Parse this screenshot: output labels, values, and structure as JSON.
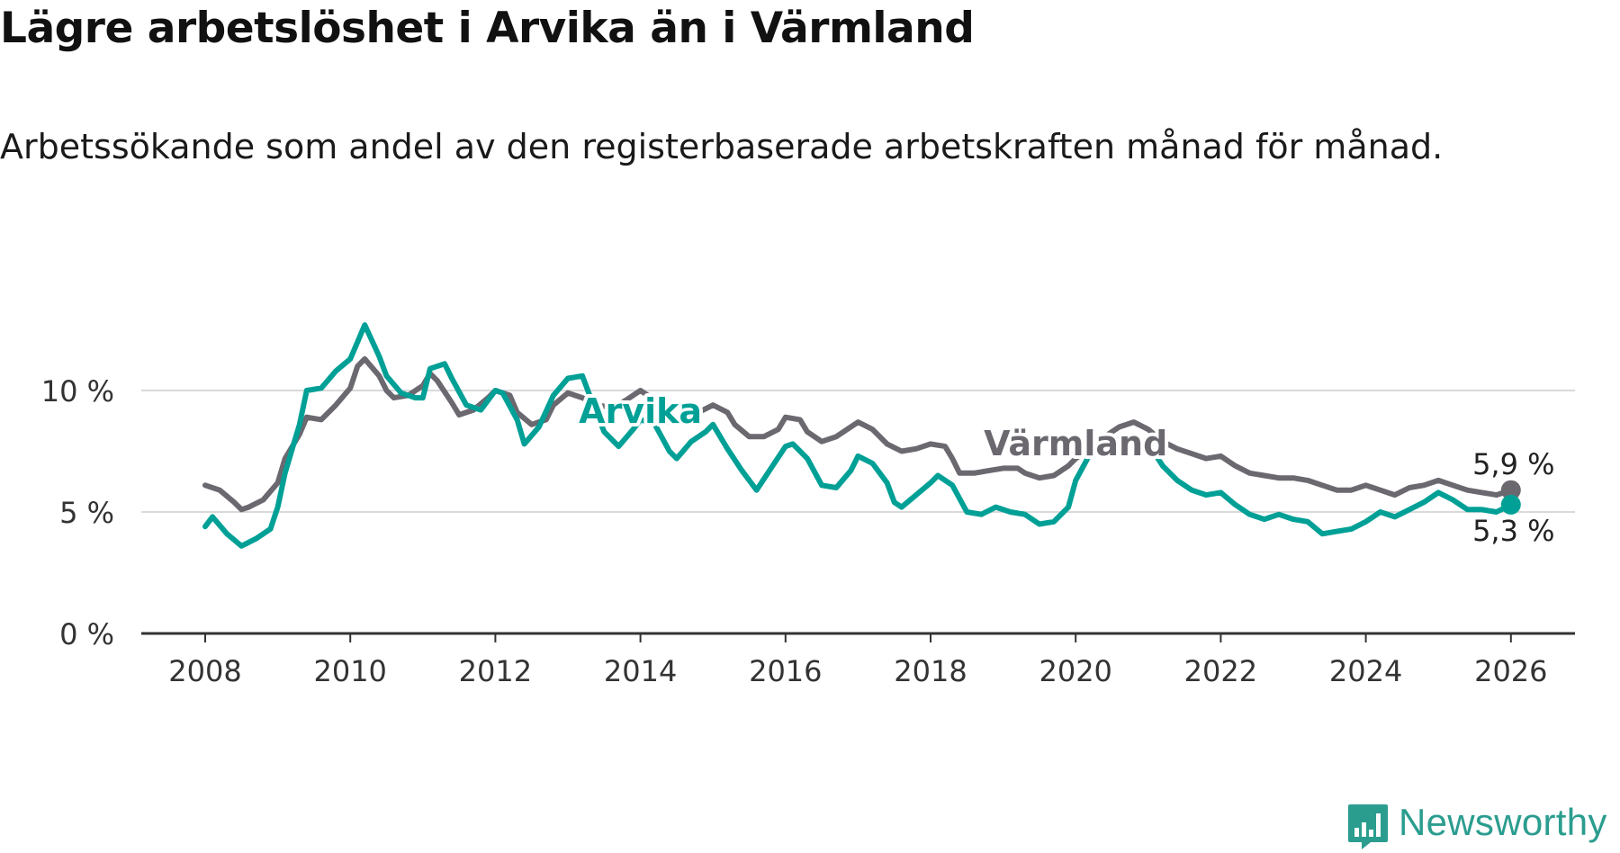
{
  "title": "Lägre arbetslöshet i Arvika än i Värmland",
  "subtitle": "Arbetssökande som andel av den registerbaserade arbetskraften månad för månad.",
  "brand": {
    "name": "Newsworthy",
    "color": "#2b9d8f"
  },
  "chart_data": {
    "type": "line",
    "x_axis": {
      "ticks": [
        "2008",
        "2010",
        "2012",
        "2014",
        "2016",
        "2018",
        "2020",
        "2022",
        "2024",
        "2026"
      ],
      "range": [
        2007.1,
        2027.0
      ]
    },
    "y_axis": {
      "ticks": [
        "0 %",
        "5 %",
        "10 %"
      ],
      "range": [
        0,
        13
      ],
      "grid": true
    },
    "series": [
      {
        "name": "Värmland",
        "color": "#6b6870",
        "end_label": "5,9 %",
        "points": [
          [
            2008.0,
            6.1
          ],
          [
            2008.2,
            5.9
          ],
          [
            2008.4,
            5.4
          ],
          [
            2008.5,
            5.1
          ],
          [
            2008.6,
            5.2
          ],
          [
            2008.8,
            5.5
          ],
          [
            2009.0,
            6.2
          ],
          [
            2009.1,
            7.2
          ],
          [
            2009.3,
            8.2
          ],
          [
            2009.4,
            8.9
          ],
          [
            2009.6,
            8.8
          ],
          [
            2009.8,
            9.4
          ],
          [
            2010.0,
            10.1
          ],
          [
            2010.1,
            11.0
          ],
          [
            2010.2,
            11.3
          ],
          [
            2010.4,
            10.6
          ],
          [
            2010.5,
            10.0
          ],
          [
            2010.6,
            9.7
          ],
          [
            2010.8,
            9.8
          ],
          [
            2011.0,
            10.2
          ],
          [
            2011.1,
            10.7
          ],
          [
            2011.2,
            10.4
          ],
          [
            2011.4,
            9.5
          ],
          [
            2011.5,
            9.0
          ],
          [
            2011.7,
            9.2
          ],
          [
            2011.9,
            9.7
          ],
          [
            2012.0,
            10.0
          ],
          [
            2012.2,
            9.8
          ],
          [
            2012.3,
            9.1
          ],
          [
            2012.5,
            8.6
          ],
          [
            2012.7,
            8.8
          ],
          [
            2012.8,
            9.4
          ],
          [
            2013.0,
            9.9
          ],
          [
            2013.2,
            9.7
          ],
          [
            2013.4,
            9.4
          ],
          [
            2013.6,
            9.3
          ],
          [
            2013.8,
            9.6
          ],
          [
            2014.0,
            10.0
          ],
          [
            2014.1,
            9.8
          ],
          [
            2014.3,
            9.2
          ],
          [
            2014.4,
            8.7
          ],
          [
            2014.6,
            8.7
          ],
          [
            2014.8,
            9.1
          ],
          [
            2015.0,
            9.4
          ],
          [
            2015.2,
            9.1
          ],
          [
            2015.3,
            8.6
          ],
          [
            2015.5,
            8.1
          ],
          [
            2015.7,
            8.1
          ],
          [
            2015.9,
            8.4
          ],
          [
            2016.0,
            8.9
          ],
          [
            2016.2,
            8.8
          ],
          [
            2016.3,
            8.3
          ],
          [
            2016.5,
            7.9
          ],
          [
            2016.7,
            8.1
          ],
          [
            2016.9,
            8.5
          ],
          [
            2017.0,
            8.7
          ],
          [
            2017.2,
            8.4
          ],
          [
            2017.4,
            7.8
          ],
          [
            2017.6,
            7.5
          ],
          [
            2017.8,
            7.6
          ],
          [
            2018.0,
            7.8
          ],
          [
            2018.2,
            7.7
          ],
          [
            2018.3,
            7.2
          ],
          [
            2018.4,
            6.6
          ],
          [
            2018.6,
            6.6
          ],
          [
            2018.8,
            6.7
          ],
          [
            2019.0,
            6.8
          ],
          [
            2019.2,
            6.8
          ],
          [
            2019.3,
            6.6
          ],
          [
            2019.5,
            6.4
          ],
          [
            2019.7,
            6.5
          ],
          [
            2019.9,
            6.9
          ],
          [
            2020.0,
            7.2
          ],
          [
            2020.2,
            7.6
          ],
          [
            2020.4,
            8.1
          ],
          [
            2020.6,
            8.5
          ],
          [
            2020.8,
            8.7
          ],
          [
            2021.0,
            8.4
          ],
          [
            2021.2,
            7.9
          ],
          [
            2021.4,
            7.6
          ],
          [
            2021.6,
            7.4
          ],
          [
            2021.8,
            7.2
          ],
          [
            2022.0,
            7.3
          ],
          [
            2022.2,
            6.9
          ],
          [
            2022.4,
            6.6
          ],
          [
            2022.6,
            6.5
          ],
          [
            2022.8,
            6.4
          ],
          [
            2023.0,
            6.4
          ],
          [
            2023.2,
            6.3
          ],
          [
            2023.4,
            6.1
          ],
          [
            2023.6,
            5.9
          ],
          [
            2023.8,
            5.9
          ],
          [
            2024.0,
            6.1
          ],
          [
            2024.2,
            5.9
          ],
          [
            2024.4,
            5.7
          ],
          [
            2024.6,
            6.0
          ],
          [
            2024.8,
            6.1
          ],
          [
            2025.0,
            6.3
          ],
          [
            2025.2,
            6.1
          ],
          [
            2025.4,
            5.9
          ],
          [
            2025.6,
            5.8
          ],
          [
            2025.8,
            5.7
          ],
          [
            2026.0,
            5.9
          ]
        ]
      },
      {
        "name": "Arvika",
        "color": "#00a096",
        "end_label": "5,3 %",
        "points": [
          [
            2008.0,
            4.4
          ],
          [
            2008.1,
            4.8
          ],
          [
            2008.3,
            4.1
          ],
          [
            2008.5,
            3.6
          ],
          [
            2008.7,
            3.9
          ],
          [
            2008.9,
            4.3
          ],
          [
            2009.0,
            5.2
          ],
          [
            2009.1,
            6.6
          ],
          [
            2009.2,
            7.6
          ],
          [
            2009.3,
            8.6
          ],
          [
            2009.4,
            10.0
          ],
          [
            2009.6,
            10.1
          ],
          [
            2009.8,
            10.8
          ],
          [
            2010.0,
            11.3
          ],
          [
            2010.1,
            12.0
          ],
          [
            2010.2,
            12.7
          ],
          [
            2010.4,
            11.4
          ],
          [
            2010.5,
            10.6
          ],
          [
            2010.7,
            9.9
          ],
          [
            2010.9,
            9.7
          ],
          [
            2011.0,
            9.7
          ],
          [
            2011.1,
            10.9
          ],
          [
            2011.3,
            11.1
          ],
          [
            2011.4,
            10.5
          ],
          [
            2011.6,
            9.4
          ],
          [
            2011.8,
            9.2
          ],
          [
            2012.0,
            10.0
          ],
          [
            2012.1,
            9.9
          ],
          [
            2012.3,
            8.8
          ],
          [
            2012.4,
            7.8
          ],
          [
            2012.6,
            8.5
          ],
          [
            2012.8,
            9.8
          ],
          [
            2013.0,
            10.5
          ],
          [
            2013.2,
            10.6
          ],
          [
            2013.3,
            9.8
          ],
          [
            2013.5,
            8.3
          ],
          [
            2013.7,
            7.7
          ],
          [
            2013.9,
            8.4
          ],
          [
            2014.0,
            8.8
          ],
          [
            2014.2,
            8.6
          ],
          [
            2014.4,
            7.5
          ],
          [
            2014.5,
            7.2
          ],
          [
            2014.7,
            7.9
          ],
          [
            2014.9,
            8.3
          ],
          [
            2015.0,
            8.6
          ],
          [
            2015.2,
            7.6
          ],
          [
            2015.4,
            6.7
          ],
          [
            2015.6,
            5.9
          ],
          [
            2015.8,
            6.8
          ],
          [
            2016.0,
            7.7
          ],
          [
            2016.1,
            7.8
          ],
          [
            2016.3,
            7.2
          ],
          [
            2016.5,
            6.1
          ],
          [
            2016.7,
            6.0
          ],
          [
            2016.9,
            6.7
          ],
          [
            2017.0,
            7.3
          ],
          [
            2017.2,
            7.0
          ],
          [
            2017.4,
            6.2
          ],
          [
            2017.5,
            5.4
          ],
          [
            2017.6,
            5.2
          ],
          [
            2017.8,
            5.7
          ],
          [
            2018.0,
            6.2
          ],
          [
            2018.1,
            6.5
          ],
          [
            2018.3,
            6.1
          ],
          [
            2018.5,
            5.0
          ],
          [
            2018.7,
            4.9
          ],
          [
            2018.9,
            5.2
          ],
          [
            2019.1,
            5.0
          ],
          [
            2019.3,
            4.9
          ],
          [
            2019.5,
            4.5
          ],
          [
            2019.7,
            4.6
          ],
          [
            2019.9,
            5.2
          ],
          [
            2020.0,
            6.3
          ],
          [
            2020.2,
            7.4
          ],
          [
            2020.4,
            7.8
          ],
          [
            2020.6,
            8.0
          ],
          [
            2020.8,
            8.0
          ],
          [
            2021.0,
            7.8
          ],
          [
            2021.2,
            6.9
          ],
          [
            2021.4,
            6.3
          ],
          [
            2021.6,
            5.9
          ],
          [
            2021.8,
            5.7
          ],
          [
            2022.0,
            5.8
          ],
          [
            2022.2,
            5.3
          ],
          [
            2022.4,
            4.9
          ],
          [
            2022.6,
            4.7
          ],
          [
            2022.8,
            4.9
          ],
          [
            2023.0,
            4.7
          ],
          [
            2023.2,
            4.6
          ],
          [
            2023.4,
            4.1
          ],
          [
            2023.6,
            4.2
          ],
          [
            2023.8,
            4.3
          ],
          [
            2024.0,
            4.6
          ],
          [
            2024.2,
            5.0
          ],
          [
            2024.4,
            4.8
          ],
          [
            2024.6,
            5.1
          ],
          [
            2024.8,
            5.4
          ],
          [
            2025.0,
            5.8
          ],
          [
            2025.2,
            5.5
          ],
          [
            2025.4,
            5.1
          ],
          [
            2025.6,
            5.1
          ],
          [
            2025.8,
            5.0
          ],
          [
            2026.0,
            5.3
          ]
        ]
      }
    ]
  }
}
